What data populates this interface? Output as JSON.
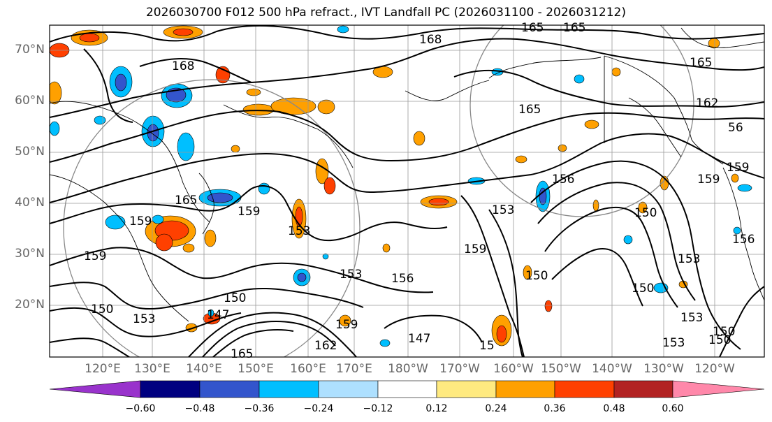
{
  "title": "2026030700 F012 500 hPa refract., IVT Landfall PC (2026031100 - 2026031212)",
  "lat_labels": [
    "70°N",
    "60°N",
    "50°N",
    "40°N",
    "30°N",
    "20°N"
  ],
  "lon_labels": [
    "120°E",
    "130°E",
    "140°E",
    "150°E",
    "160°E",
    "170°E",
    "180°W",
    "170°W",
    "160°W",
    "150°W",
    "140°W",
    "130°W",
    "120°W"
  ],
  "contour_labels": [
    "168",
    "165",
    "165",
    "168",
    "165",
    "162",
    "165",
    "56",
    "159",
    "159",
    "156",
    "159",
    "165",
    "153",
    "159",
    "153",
    "159",
    "150",
    "156",
    "153",
    "150",
    "153",
    "150",
    "150",
    "153",
    "150",
    "153",
    "147",
    "165",
    "162",
    "159",
    "150",
    "159",
    "156",
    "147",
    "15",
    "153",
    "150"
  ],
  "colorbar": {
    "ticks": [
      "−0.60",
      "−0.48",
      "−0.36",
      "−0.24",
      "−0.12",
      "0.12",
      "0.24",
      "0.36",
      "0.48",
      "0.60"
    ],
    "colors": [
      "#9933cc",
      "#000080",
      "#3355cc",
      "#00bfff",
      "#aee0ff",
      "#ffffff",
      "#ffea80",
      "#ffa000",
      "#ff4000",
      "#b22222",
      "#ff88aa"
    ]
  }
}
